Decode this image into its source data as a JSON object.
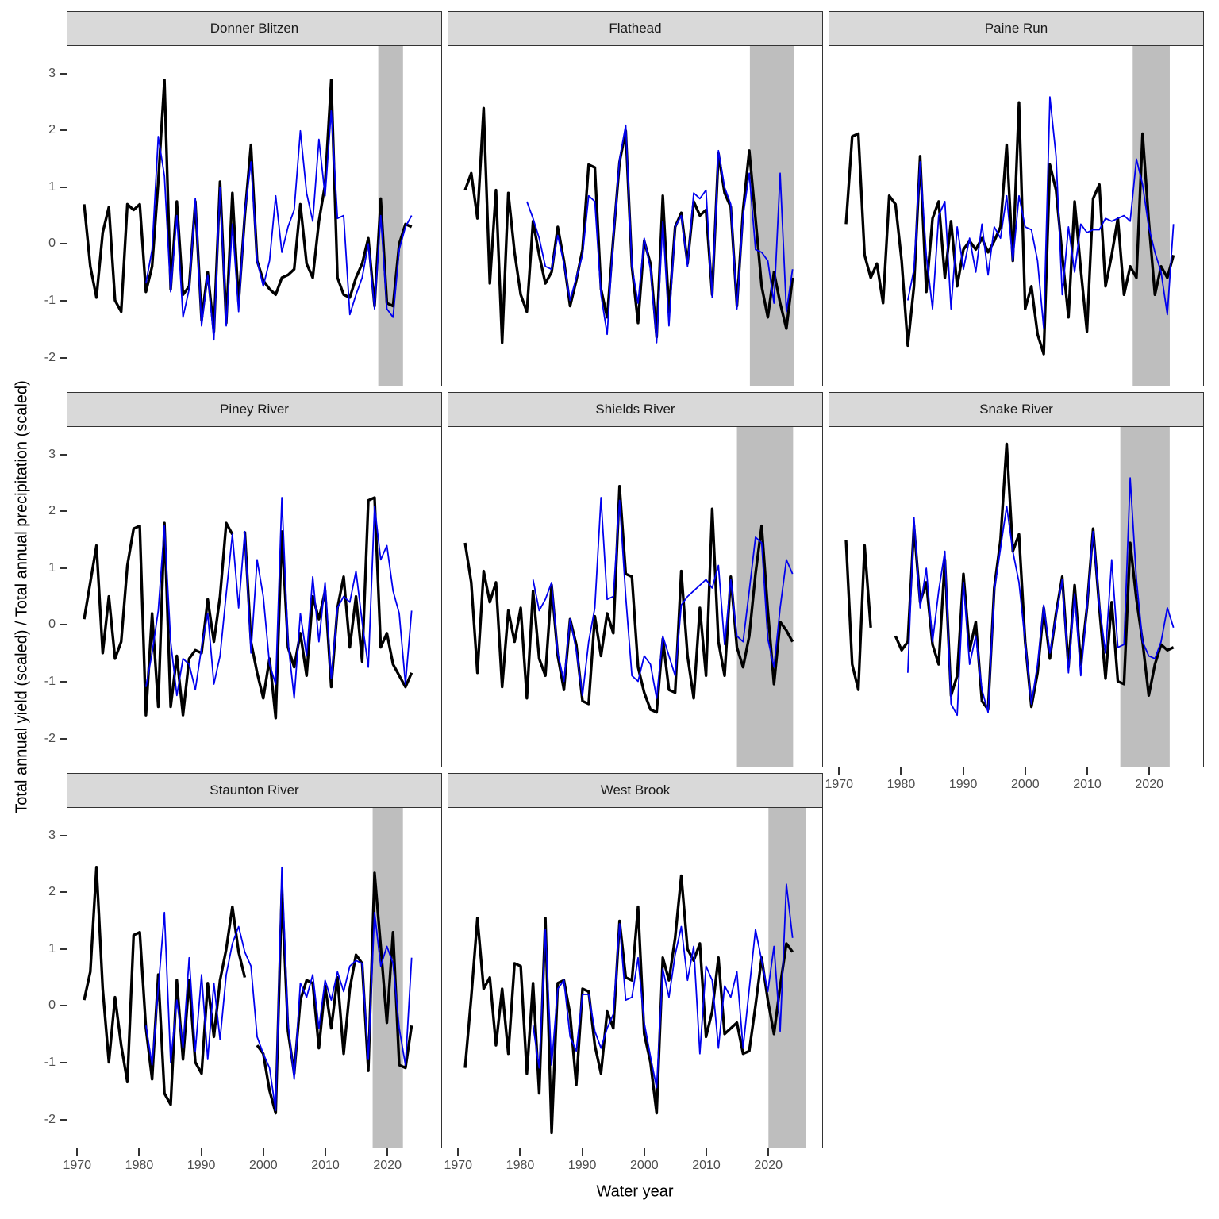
{
  "figure": {
    "y_axis_title": "Total annual yield (scaled) / Total annual precipitation (scaled)",
    "x_axis_title": "Water year",
    "y_ticks": [
      3,
      2,
      1,
      0,
      -1,
      -2
    ],
    "x_ticks": [
      1970,
      1980,
      1990,
      2000,
      2010,
      2020
    ]
  },
  "style": {
    "yield_color": "#000000",
    "precipitation_color": "#0000EE",
    "band_color": "#BEBEBE",
    "strip_fill": "#D9D9D9",
    "border_color": "#333333",
    "tick_label_color": "#4D4D4D"
  },
  "chart_data": [
    {
      "type": "line",
      "title": "Donner Blitzen",
      "row": 0,
      "col": 0,
      "show_y_axis": true,
      "show_x_axis": false,
      "x_range": [
        1968.3,
        2028.8
      ],
      "y_range": [
        -2.51,
        3.5
      ],
      "shaded_band": {
        "from": 2018.6,
        "to": 2022.6
      },
      "series": [
        {
          "name": "yield",
          "start_year": 1971,
          "values": [
            0.7,
            -0.4,
            -0.95,
            0.2,
            0.65,
            -1.0,
            -1.2,
            0.7,
            0.6,
            0.7,
            -0.85,
            -0.4,
            1.1,
            2.9,
            -0.8,
            0.75,
            -0.9,
            -0.75,
            0.75,
            -1.35,
            -0.5,
            -1.55,
            1.1,
            -1.4,
            0.9,
            -1.05,
            0.5,
            1.75,
            -0.3,
            -0.65,
            -0.8,
            -0.9,
            -0.6,
            -0.55,
            -0.45,
            0.7,
            -0.35,
            -0.6,
            0.4,
            1.05,
            2.9,
            -0.6,
            -0.9,
            -0.95,
            -0.6,
            -0.35,
            0.1,
            -1.1,
            0.8,
            -1.05,
            -1.1,
            0.0,
            0.35,
            0.3
          ]
        },
        {
          "name": "precipitation",
          "start_year": 1981,
          "values": [
            -0.7,
            -0.1,
            1.9,
            1.2,
            -0.85,
            0.5,
            -1.3,
            -0.8,
            0.8,
            -1.45,
            -0.55,
            -1.7,
            1.0,
            -1.45,
            0.35,
            -1.2,
            0.55,
            1.45,
            -0.3,
            -0.75,
            -0.3,
            0.85,
            -0.15,
            0.3,
            0.6,
            2.0,
            0.9,
            0.4,
            1.85,
            0.85,
            2.35,
            0.45,
            0.5,
            -1.25,
            -0.9,
            -0.6,
            0.0,
            -1.15,
            0.5,
            -1.15,
            -1.3,
            -0.1,
            0.3,
            0.5
          ]
        }
      ]
    },
    {
      "type": "line",
      "title": "Flathead",
      "row": 0,
      "col": 1,
      "show_y_axis": false,
      "show_x_axis": false,
      "x_range": [
        1968.3,
        2028.8
      ],
      "y_range": [
        -2.51,
        3.5
      ],
      "shaded_band": {
        "from": 2017.1,
        "to": 2024.3
      },
      "series": [
        {
          "name": "yield",
          "start_year": 1971,
          "values": [
            0.95,
            1.25,
            0.45,
            2.4,
            -0.7,
            0.95,
            -1.75,
            0.9,
            -0.15,
            -0.9,
            -1.2,
            0.4,
            -0.2,
            -0.7,
            -0.5,
            0.3,
            -0.3,
            -1.1,
            -0.65,
            -0.1,
            1.4,
            1.35,
            -0.8,
            -1.3,
            0.1,
            1.45,
            2.0,
            -0.4,
            -1.4,
            0.05,
            -0.35,
            -1.65,
            0.85,
            -1.2,
            0.3,
            0.55,
            -0.35,
            0.75,
            0.5,
            0.6,
            -0.9,
            1.6,
            0.9,
            0.65,
            -1.1,
            0.6,
            1.65,
            0.45,
            -0.75,
            -1.3,
            -0.5,
            -1.05,
            -1.5,
            -0.6
          ]
        },
        {
          "name": "precipitation",
          "start_year": 1981,
          "values": [
            0.75,
            0.45,
            0.1,
            -0.4,
            -0.45,
            0.15,
            -0.35,
            -1.0,
            -0.6,
            -0.2,
            0.85,
            0.75,
            -0.9,
            -1.6,
            0.1,
            1.5,
            2.1,
            -0.4,
            -1.05,
            0.1,
            -0.45,
            -1.75,
            0.4,
            -1.45,
            0.3,
            0.5,
            -0.4,
            0.9,
            0.8,
            0.95,
            -0.95,
            1.65,
            1.0,
            0.7,
            -1.15,
            0.5,
            1.25,
            -0.1,
            -0.15,
            -0.3,
            -1.05,
            1.25,
            -1.2,
            -0.45
          ]
        }
      ]
    },
    {
      "type": "line",
      "title": "Paine Run",
      "row": 0,
      "col": 2,
      "show_y_axis": false,
      "show_x_axis": false,
      "x_range": [
        1968.3,
        2028.8
      ],
      "y_range": [
        -2.51,
        3.5
      ],
      "shaded_band": {
        "from": 2017.4,
        "to": 2023.4
      },
      "series": [
        {
          "name": "yield",
          "start_year": 1971,
          "values": [
            0.35,
            1.9,
            1.95,
            -0.2,
            -0.6,
            -0.35,
            -1.05,
            0.85,
            0.7,
            -0.3,
            -1.8,
            -0.75,
            1.55,
            -0.85,
            0.45,
            0.75,
            -0.6,
            0.4,
            -0.75,
            -0.1,
            0.05,
            -0.1,
            0.1,
            -0.15,
            0.05,
            0.3,
            1.75,
            -0.3,
            2.5,
            -1.15,
            -0.75,
            -1.6,
            -1.95,
            1.4,
            0.95,
            -0.2,
            -1.3,
            0.75,
            -0.45,
            -1.55,
            0.8,
            1.05,
            -0.75,
            -0.2,
            0.45,
            -0.9,
            -0.4,
            -0.6,
            1.95,
            0.4,
            -0.9,
            -0.4,
            -0.6,
            -0.2
          ]
        },
        {
          "name": "precipitation",
          "start_year": 1981,
          "values": [
            -1.0,
            -0.45,
            1.45,
            -0.2,
            -1.15,
            0.5,
            0.75,
            -1.15,
            0.3,
            -0.45,
            0.1,
            -0.5,
            0.35,
            -0.55,
            0.3,
            0.1,
            0.85,
            -0.3,
            0.85,
            0.3,
            0.25,
            -0.3,
            -1.5,
            2.6,
            1.55,
            -0.9,
            0.3,
            -0.5,
            0.35,
            0.2,
            0.25,
            0.25,
            0.45,
            0.4,
            0.45,
            0.5,
            0.4,
            1.5,
            1.05,
            0.3,
            -0.15,
            -0.5,
            -1.25,
            0.35
          ]
        }
      ]
    },
    {
      "type": "line",
      "title": "Piney River",
      "row": 1,
      "col": 0,
      "show_y_axis": true,
      "show_x_axis": false,
      "x_range": [
        1968.3,
        2028.8
      ],
      "y_range": [
        -2.51,
        3.5
      ],
      "shaded_band": null,
      "series": [
        {
          "name": "yield",
          "start_year": 1971,
          "values": [
            0.1,
            0.75,
            1.4,
            -0.5,
            0.5,
            -0.6,
            -0.3,
            1.05,
            1.7,
            1.75,
            -1.6,
            0.2,
            -1.45,
            1.8,
            -1.45,
            -0.55,
            -1.6,
            -0.6,
            -0.45,
            -0.5,
            0.45,
            -0.3,
            0.5,
            1.8,
            1.6,
            null,
            1.65,
            -0.3,
            -0.85,
            -1.3,
            -0.6,
            -1.65,
            1.65,
            -0.4,
            -0.75,
            -0.15,
            -0.9,
            0.5,
            0.1,
            0.6,
            -1.1,
            0.3,
            0.85,
            -0.4,
            0.5,
            -0.65,
            2.2,
            2.25,
            -0.4,
            -0.15,
            -0.7,
            -0.9,
            -1.1,
            -0.85
          ]
        },
        {
          "name": "precipitation",
          "start_year": 1981,
          "values": [
            -1.1,
            -0.5,
            0.25,
            1.75,
            -0.3,
            -1.25,
            -0.6,
            -0.7,
            -1.15,
            -0.4,
            0.2,
            -1.05,
            -0.55,
            0.55,
            1.6,
            0.3,
            1.65,
            -0.5,
            1.15,
            0.5,
            -0.7,
            -1.05,
            2.25,
            -0.3,
            -1.3,
            0.2,
            -0.55,
            0.85,
            -0.3,
            0.75,
            -0.95,
            0.3,
            0.5,
            0.4,
            0.95,
            0.05,
            -0.75,
            2.1,
            1.15,
            1.4,
            0.6,
            0.2,
            -1.05,
            0.25
          ]
        }
      ]
    },
    {
      "type": "line",
      "title": "Shields River",
      "row": 1,
      "col": 1,
      "show_y_axis": false,
      "show_x_axis": false,
      "x_range": [
        1968.3,
        2028.8
      ],
      "y_range": [
        -2.51,
        3.5
      ],
      "shaded_band": {
        "from": 2015.0,
        "to": 2024.1
      },
      "series": [
        {
          "name": "yield",
          "start_year": 1971,
          "values": [
            1.45,
            0.75,
            -0.85,
            0.95,
            0.4,
            0.75,
            -1.1,
            0.25,
            -0.3,
            0.3,
            -1.3,
            0.6,
            -0.6,
            -0.9,
            0.7,
            -0.55,
            -1.15,
            0.1,
            -0.35,
            -1.35,
            -1.4,
            0.15,
            -0.55,
            0.2,
            -0.15,
            2.45,
            0.9,
            0.85,
            -0.75,
            -1.2,
            -1.5,
            -1.55,
            -0.25,
            -1.15,
            -1.2,
            0.95,
            -0.55,
            -1.3,
            0.3,
            -0.9,
            2.05,
            -0.3,
            -0.9,
            0.85,
            -0.4,
            -0.75,
            -0.2,
            0.9,
            1.75,
            0.25,
            -1.05,
            0.05,
            -0.1,
            -0.3
          ]
        },
        {
          "name": "precipitation",
          "start_year": 1982,
          "values": [
            0.8,
            0.25,
            0.45,
            0.75,
            -0.5,
            -1.0,
            0.1,
            -0.45,
            -1.25,
            -0.3,
            0.3,
            2.25,
            0.45,
            0.5,
            2.2,
            0.5,
            -0.9,
            -1.0,
            -0.55,
            -0.7,
            -1.3,
            -0.2,
            -0.55,
            -0.9,
            0.35,
            0.5,
            0.6,
            0.7,
            0.8,
            0.65,
            1.05,
            -0.35,
            0.8,
            -0.2,
            -0.3,
            0.6,
            1.55,
            1.45,
            -0.25,
            -0.75,
            0.3,
            1.15,
            0.9
          ]
        }
      ]
    },
    {
      "type": "line",
      "title": "Snake River",
      "row": 1,
      "col": 2,
      "show_y_axis": false,
      "show_x_axis": true,
      "x_range": [
        1968.3,
        2028.8
      ],
      "y_range": [
        -2.51,
        3.5
      ],
      "shaded_band": {
        "from": 2015.4,
        "to": 2023.4
      },
      "series": [
        {
          "name": "yield",
          "start_year": 1971,
          "values": [
            1.5,
            -0.7,
            -1.15,
            1.4,
            -0.05,
            null,
            null,
            null,
            -0.2,
            -0.45,
            -0.3,
            1.75,
            0.4,
            0.75,
            -0.35,
            -0.7,
            1.15,
            -1.25,
            -0.9,
            0.9,
            -0.45,
            0.05,
            -1.35,
            -1.5,
            0.65,
            1.5,
            3.2,
            1.3,
            1.6,
            -0.3,
            -1.45,
            -0.85,
            0.3,
            -0.6,
            0.2,
            0.85,
            -0.75,
            0.7,
            -0.7,
            0.3,
            1.7,
            0.3,
            -0.95,
            0.4,
            -1.0,
            -1.05,
            1.45,
            0.45,
            -0.3,
            -1.25,
            -0.7,
            -0.35,
            -0.45,
            -0.4
          ]
        },
        {
          "name": "precipitation",
          "start_year": 1981,
          "values": [
            -0.85,
            1.9,
            0.3,
            1.0,
            -0.3,
            0.6,
            1.3,
            -1.4,
            -1.6,
            0.75,
            -0.7,
            -0.2,
            -1.15,
            -1.55,
            0.6,
            1.35,
            2.1,
            1.3,
            0.75,
            -0.3,
            -1.4,
            -0.7,
            0.35,
            -0.5,
            0.15,
            0.8,
            -0.85,
            0.55,
            -0.9,
            0.3,
            1.65,
            0.35,
            -0.5,
            1.15,
            -0.4,
            -0.35,
            2.6,
            0.8,
            -0.3,
            -0.55,
            -0.6,
            -0.3,
            0.3,
            -0.05
          ]
        }
      ]
    },
    {
      "type": "line",
      "title": "Staunton River",
      "row": 2,
      "col": 0,
      "show_y_axis": true,
      "show_x_axis": true,
      "x_range": [
        1968.3,
        2028.8
      ],
      "y_range": [
        -2.51,
        3.5
      ],
      "shaded_band": {
        "from": 2017.7,
        "to": 2022.6
      },
      "series": [
        {
          "name": "yield",
          "start_year": 1971,
          "values": [
            0.1,
            0.6,
            2.45,
            0.3,
            -1.0,
            0.15,
            -0.7,
            -1.35,
            1.25,
            1.3,
            -0.4,
            -1.3,
            0.55,
            -1.55,
            -1.75,
            0.45,
            -0.95,
            0.45,
            -1.0,
            -1.2,
            0.4,
            -0.55,
            0.45,
            1.0,
            1.75,
            0.95,
            0.5,
            null,
            -0.7,
            -0.85,
            -1.5,
            -1.9,
            2.05,
            -0.45,
            -1.2,
            0.1,
            0.45,
            0.4,
            -0.75,
            0.35,
            -0.4,
            0.5,
            -0.85,
            0.3,
            0.9,
            0.75,
            -1.15,
            2.35,
            1.05,
            -0.3,
            1.3,
            -1.05,
            -1.1,
            -0.35
          ]
        },
        {
          "name": "precipitation",
          "start_year": 1981,
          "values": [
            -0.35,
            -1.05,
            0.3,
            1.65,
            -1.0,
            0.1,
            -0.75,
            0.85,
            -0.8,
            0.55,
            -0.95,
            0.4,
            -0.6,
            0.55,
            1.1,
            1.4,
            0.95,
            0.7,
            -0.55,
            -0.85,
            -1.1,
            -1.85,
            2.45,
            -0.3,
            -1.3,
            0.4,
            0.15,
            0.55,
            -0.4,
            0.45,
            0.1,
            0.6,
            0.25,
            0.7,
            0.8,
            0.75,
            -0.95,
            1.65,
            0.7,
            1.05,
            0.75,
            -0.4,
            -1.05,
            0.85
          ]
        }
      ]
    },
    {
      "type": "line",
      "title": "West Brook",
      "row": 2,
      "col": 1,
      "show_y_axis": false,
      "show_x_axis": true,
      "x_range": [
        1968.3,
        2028.8
      ],
      "y_range": [
        -2.51,
        3.5
      ],
      "shaded_band": {
        "from": 2020.1,
        "to": 2026.2
      },
      "series": [
        {
          "name": "yield",
          "start_year": 1971,
          "values": [
            -1.1,
            0.15,
            1.55,
            0.3,
            0.5,
            -0.7,
            0.3,
            -0.85,
            0.75,
            0.7,
            -1.2,
            0.4,
            -1.55,
            1.55,
            -2.25,
            0.4,
            0.45,
            -0.15,
            -1.4,
            0.3,
            0.25,
            -0.7,
            -1.2,
            -0.1,
            -0.4,
            1.5,
            0.5,
            0.45,
            1.75,
            -0.5,
            -1.0,
            -1.9,
            0.85,
            0.45,
            1.2,
            2.3,
            1.0,
            0.8,
            1.1,
            -0.55,
            -0.1,
            0.85,
            -0.5,
            -0.4,
            -0.3,
            -0.85,
            -0.8,
            0.0,
            0.85,
            0.1,
            -0.5,
            0.35,
            1.1,
            0.95
          ]
        },
        {
          "name": "precipitation",
          "start_year": 1982,
          "values": [
            -0.35,
            -1.1,
            1.35,
            -1.05,
            0.3,
            0.45,
            -0.55,
            -0.8,
            0.2,
            0.2,
            -0.45,
            -0.75,
            -0.4,
            -0.15,
            1.45,
            0.1,
            0.15,
            0.85,
            -0.3,
            -0.9,
            -1.45,
            0.65,
            0.15,
            0.9,
            1.4,
            0.45,
            1.05,
            -0.85,
            0.7,
            0.45,
            -0.75,
            0.35,
            0.15,
            0.6,
            -0.75,
            0.3,
            1.35,
            0.8,
            0.25,
            1.05,
            -0.45,
            2.15,
            1.2
          ]
        }
      ]
    }
  ]
}
